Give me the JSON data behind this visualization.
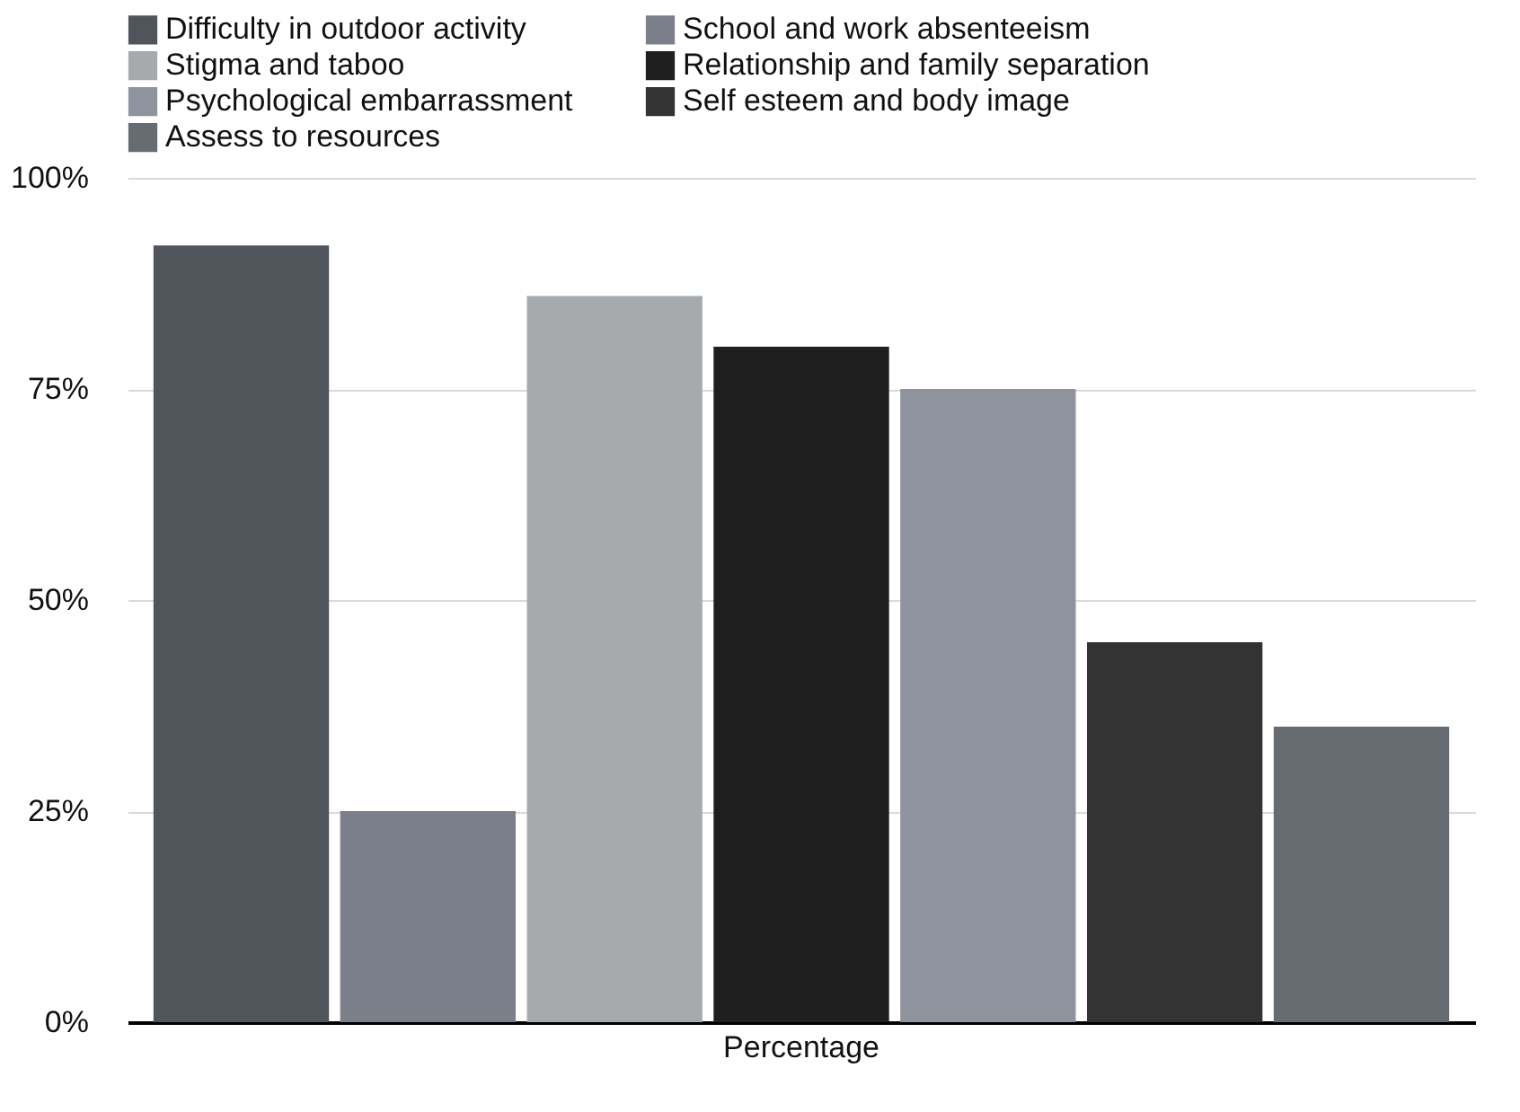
{
  "chart_data": {
    "type": "bar",
    "categories": [
      "Percentage"
    ],
    "series": [
      {
        "name": "Difficulty in outdoor activity",
        "color": "#50555c",
        "values": [
          92
        ]
      },
      {
        "name": "School and work absenteeism",
        "color": "#7b7f89",
        "values": [
          25
        ]
      },
      {
        "name": "Stigma and taboo",
        "color": "#a7aaad",
        "values": [
          86
        ]
      },
      {
        "name": "Relationship and family separation",
        "color": "#1f1f1f",
        "values": [
          80
        ]
      },
      {
        "name": "Psychological embarrassment",
        "color": "#8f939e",
        "values": [
          75
        ]
      },
      {
        "name": "Self esteem and body image",
        "color": "#333333",
        "values": [
          45
        ]
      },
      {
        "name": "Assess to resources",
        "color": "#676c73",
        "values": [
          35
        ]
      }
    ],
    "ylim": [
      0,
      100
    ],
    "yticks": [
      {
        "value": 0,
        "label": "0%"
      },
      {
        "value": 25,
        "label": "25%"
      },
      {
        "value": 50,
        "label": "50%"
      },
      {
        "value": 75,
        "label": "75%"
      },
      {
        "value": 100,
        "label": "100%"
      }
    ],
    "grid": "y",
    "legend": "top left"
  }
}
